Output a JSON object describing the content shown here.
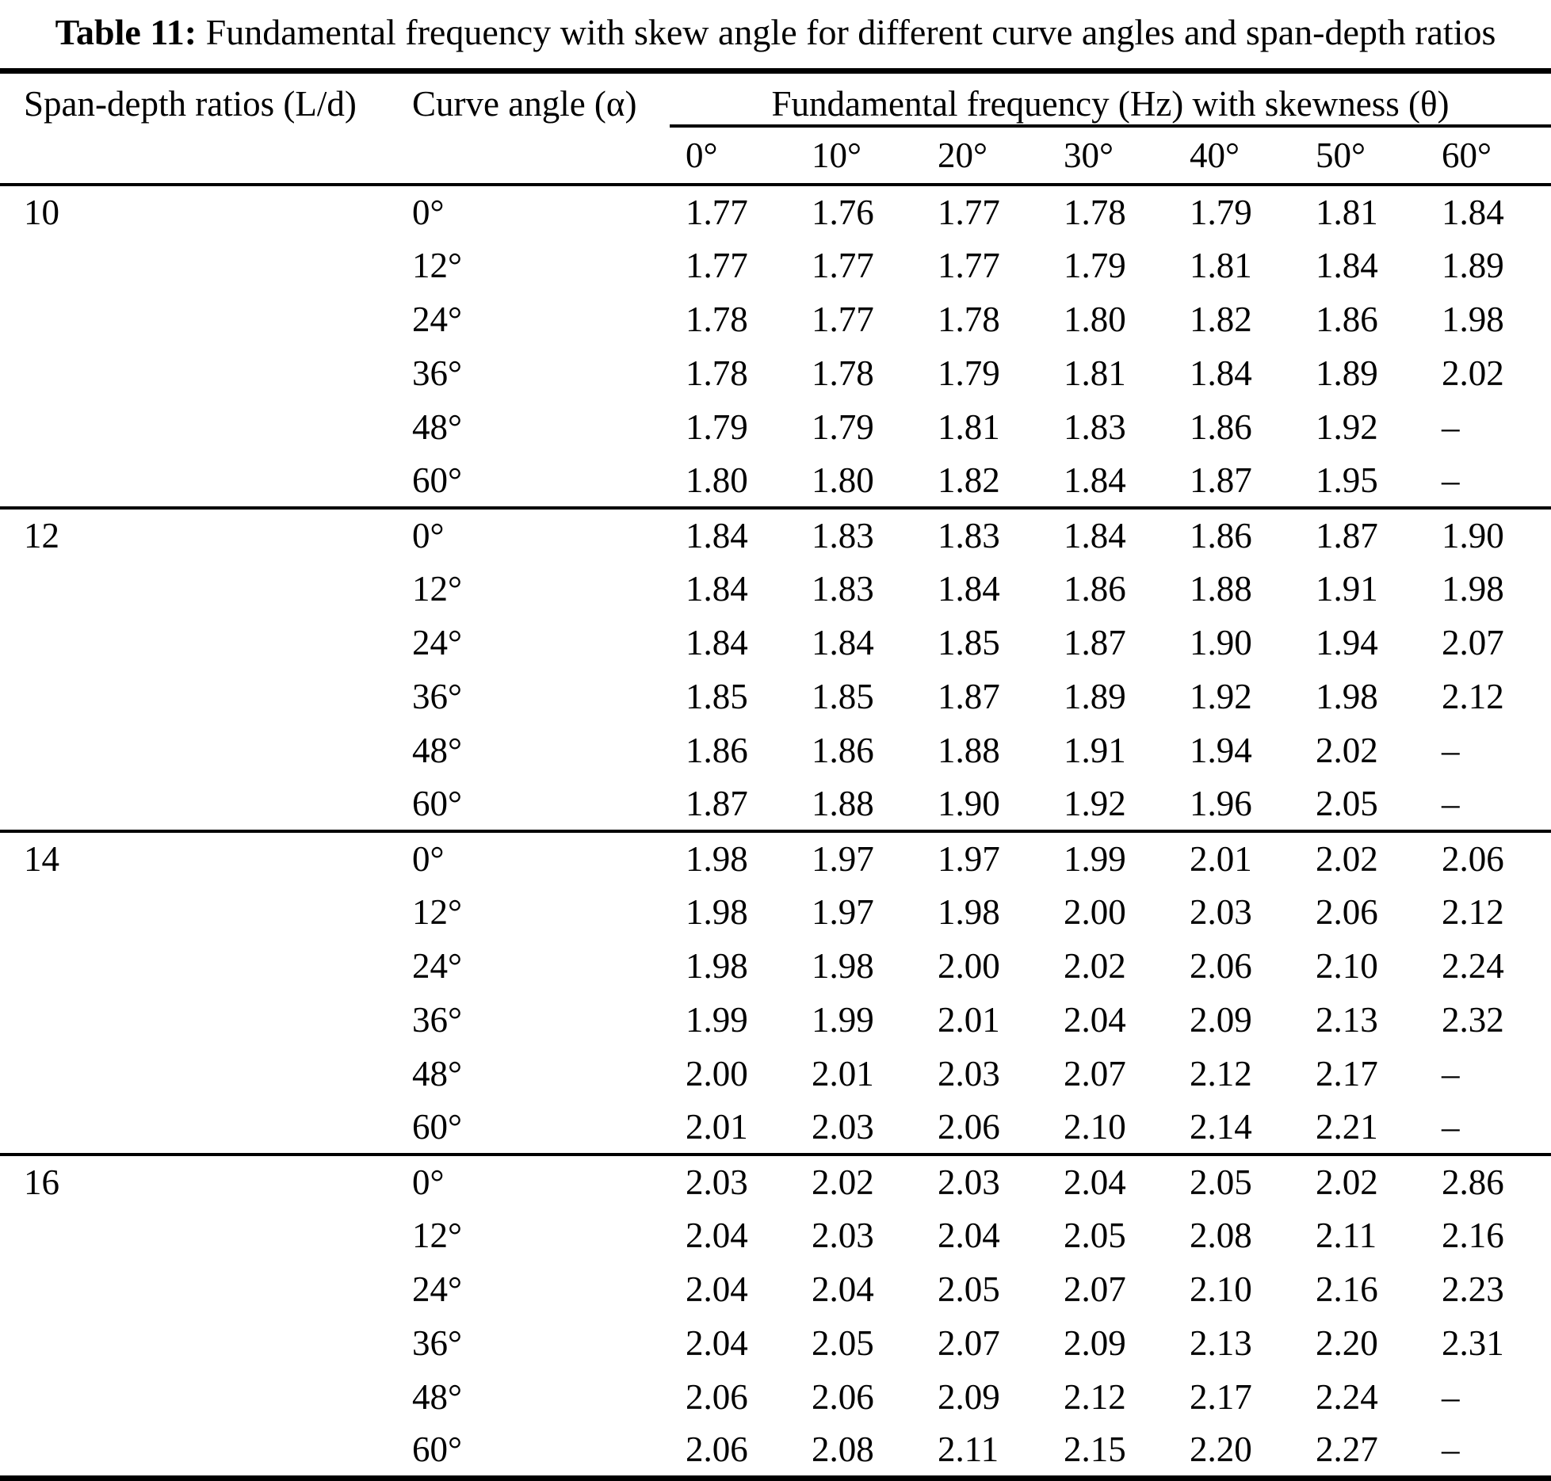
{
  "title": {
    "label": "Table 11:",
    "text": "Fundamental frequency with skew angle for different curve angles and span-depth ratios"
  },
  "table": {
    "col1_header": "Span-depth ratios (L/d)",
    "col2_header": "Curve angle (α)",
    "group_header": "Fundamental frequency (Hz) with skewness (θ)",
    "skew_angles": [
      "0°",
      "10°",
      "20°",
      "30°",
      "40°",
      "50°",
      "60°"
    ],
    "missing_marker": "–",
    "groups": [
      {
        "span_depth": "10",
        "rows": [
          {
            "curve_angle": "0°",
            "values": [
              "1.77",
              "1.76",
              "1.77",
              "1.78",
              "1.79",
              "1.81",
              "1.84"
            ]
          },
          {
            "curve_angle": "12°",
            "values": [
              "1.77",
              "1.77",
              "1.77",
              "1.79",
              "1.81",
              "1.84",
              "1.89"
            ]
          },
          {
            "curve_angle": "24°",
            "values": [
              "1.78",
              "1.77",
              "1.78",
              "1.80",
              "1.82",
              "1.86",
              "1.98"
            ]
          },
          {
            "curve_angle": "36°",
            "values": [
              "1.78",
              "1.78",
              "1.79",
              "1.81",
              "1.84",
              "1.89",
              "2.02"
            ]
          },
          {
            "curve_angle": "48°",
            "values": [
              "1.79",
              "1.79",
              "1.81",
              "1.83",
              "1.86",
              "1.92",
              "–"
            ]
          },
          {
            "curve_angle": "60°",
            "values": [
              "1.80",
              "1.80",
              "1.82",
              "1.84",
              "1.87",
              "1.95",
              "–"
            ]
          }
        ]
      },
      {
        "span_depth": "12",
        "rows": [
          {
            "curve_angle": "0°",
            "values": [
              "1.84",
              "1.83",
              "1.83",
              "1.84",
              "1.86",
              "1.87",
              "1.90"
            ]
          },
          {
            "curve_angle": "12°",
            "values": [
              "1.84",
              "1.83",
              "1.84",
              "1.86",
              "1.88",
              "1.91",
              "1.98"
            ]
          },
          {
            "curve_angle": "24°",
            "values": [
              "1.84",
              "1.84",
              "1.85",
              "1.87",
              "1.90",
              "1.94",
              "2.07"
            ]
          },
          {
            "curve_angle": "36°",
            "values": [
              "1.85",
              "1.85",
              "1.87",
              "1.89",
              "1.92",
              "1.98",
              "2.12"
            ]
          },
          {
            "curve_angle": "48°",
            "values": [
              "1.86",
              "1.86",
              "1.88",
              "1.91",
              "1.94",
              "2.02",
              "–"
            ]
          },
          {
            "curve_angle": "60°",
            "values": [
              "1.87",
              "1.88",
              "1.90",
              "1.92",
              "1.96",
              "2.05",
              "–"
            ]
          }
        ]
      },
      {
        "span_depth": "14",
        "rows": [
          {
            "curve_angle": "0°",
            "values": [
              "1.98",
              "1.97",
              "1.97",
              "1.99",
              "2.01",
              "2.02",
              "2.06"
            ]
          },
          {
            "curve_angle": "12°",
            "values": [
              "1.98",
              "1.97",
              "1.98",
              "2.00",
              "2.03",
              "2.06",
              "2.12"
            ]
          },
          {
            "curve_angle": "24°",
            "values": [
              "1.98",
              "1.98",
              "2.00",
              "2.02",
              "2.06",
              "2.10",
              "2.24"
            ]
          },
          {
            "curve_angle": "36°",
            "values": [
              "1.99",
              "1.99",
              "2.01",
              "2.04",
              "2.09",
              "2.13",
              "2.32"
            ]
          },
          {
            "curve_angle": "48°",
            "values": [
              "2.00",
              "2.01",
              "2.03",
              "2.07",
              "2.12",
              "2.17",
              "–"
            ]
          },
          {
            "curve_angle": "60°",
            "values": [
              "2.01",
              "2.03",
              "2.06",
              "2.10",
              "2.14",
              "2.21",
              "–"
            ]
          }
        ]
      },
      {
        "span_depth": "16",
        "rows": [
          {
            "curve_angle": "0°",
            "values": [
              "2.03",
              "2.02",
              "2.03",
              "2.04",
              "2.05",
              "2.02",
              "2.86"
            ]
          },
          {
            "curve_angle": "12°",
            "values": [
              "2.04",
              "2.03",
              "2.04",
              "2.05",
              "2.08",
              "2.11",
              "2.16"
            ]
          },
          {
            "curve_angle": "24°",
            "values": [
              "2.04",
              "2.04",
              "2.05",
              "2.07",
              "2.10",
              "2.16",
              "2.23"
            ]
          },
          {
            "curve_angle": "36°",
            "values": [
              "2.04",
              "2.05",
              "2.07",
              "2.09",
              "2.13",
              "2.20",
              "2.31"
            ]
          },
          {
            "curve_angle": "48°",
            "values": [
              "2.06",
              "2.06",
              "2.09",
              "2.12",
              "2.17",
              "2.24",
              "–"
            ]
          },
          {
            "curve_angle": "60°",
            "values": [
              "2.06",
              "2.08",
              "2.11",
              "2.15",
              "2.20",
              "2.27",
              "–"
            ]
          }
        ]
      }
    ]
  }
}
